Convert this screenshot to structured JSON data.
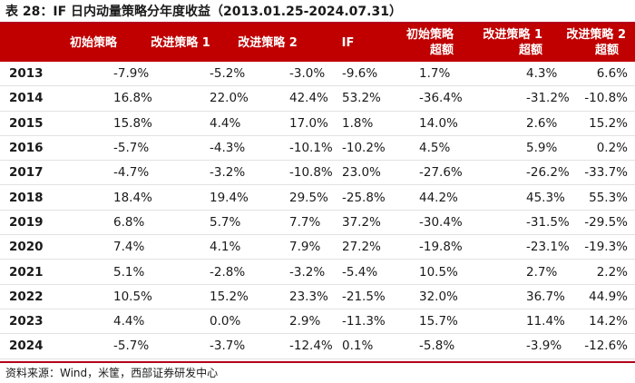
{
  "title": "表 28：IF 日内动量策略分年度收益（2013.01.25-2024.07.31）",
  "header": {
    "year": "",
    "c1": "初始策略",
    "c2": "改进策略 1",
    "c3": "改进策略 2",
    "c4": "IF",
    "c5_line1": "初始策略",
    "c5_line2": "超额",
    "c6_line1": "改进策略 1",
    "c6_line2": "超额",
    "c7_line1": "改进策略 2",
    "c7_line2": "超额"
  },
  "rows": [
    [
      "2013",
      "-7.9%",
      "-5.2%",
      "-3.0%",
      "-9.6%",
      "1.7%",
      "4.3%",
      "6.6%"
    ],
    [
      "2014",
      "16.8%",
      "22.0%",
      "42.4%",
      "53.2%",
      "-36.4%",
      "-31.2%",
      "-10.8%"
    ],
    [
      "2015",
      "15.8%",
      "4.4%",
      "17.0%",
      "1.8%",
      "14.0%",
      "2.6%",
      "15.2%"
    ],
    [
      "2016",
      "-5.7%",
      "-4.3%",
      "-10.1%",
      "-10.2%",
      "4.5%",
      "5.9%",
      "0.2%"
    ],
    [
      "2017",
      "-4.7%",
      "-3.2%",
      "-10.8%",
      "23.0%",
      "-27.6%",
      "-26.2%",
      "-33.7%"
    ],
    [
      "2018",
      "18.4%",
      "19.4%",
      "29.5%",
      "-25.8%",
      "44.2%",
      "45.3%",
      "55.3%"
    ],
    [
      "2019",
      "6.8%",
      "5.7%",
      "7.7%",
      "37.2%",
      "-30.4%",
      "-31.5%",
      "-29.5%"
    ],
    [
      "2020",
      "7.4%",
      "4.1%",
      "7.9%",
      "27.2%",
      "-19.8%",
      "-23.1%",
      "-19.3%"
    ],
    [
      "2021",
      "5.1%",
      "-2.8%",
      "-3.2%",
      "-5.4%",
      "10.5%",
      "2.7%",
      "2.2%"
    ],
    [
      "2022",
      "10.5%",
      "15.2%",
      "23.3%",
      "-21.5%",
      "32.0%",
      "36.7%",
      "44.9%"
    ],
    [
      "2023",
      "4.4%",
      "0.0%",
      "2.9%",
      "-11.3%",
      "15.7%",
      "11.4%",
      "14.2%"
    ],
    [
      "2024",
      "-5.7%",
      "-3.7%",
      "-12.4%",
      "0.1%",
      "-5.8%",
      "-3.9%",
      "-12.6%"
    ]
  ],
  "source": "资料来源：Wind，米筐，西部证券研发中心",
  "colors": {
    "header_bg": "#c00000",
    "header_text": "#ffffff",
    "rule": "#b3001b"
  }
}
